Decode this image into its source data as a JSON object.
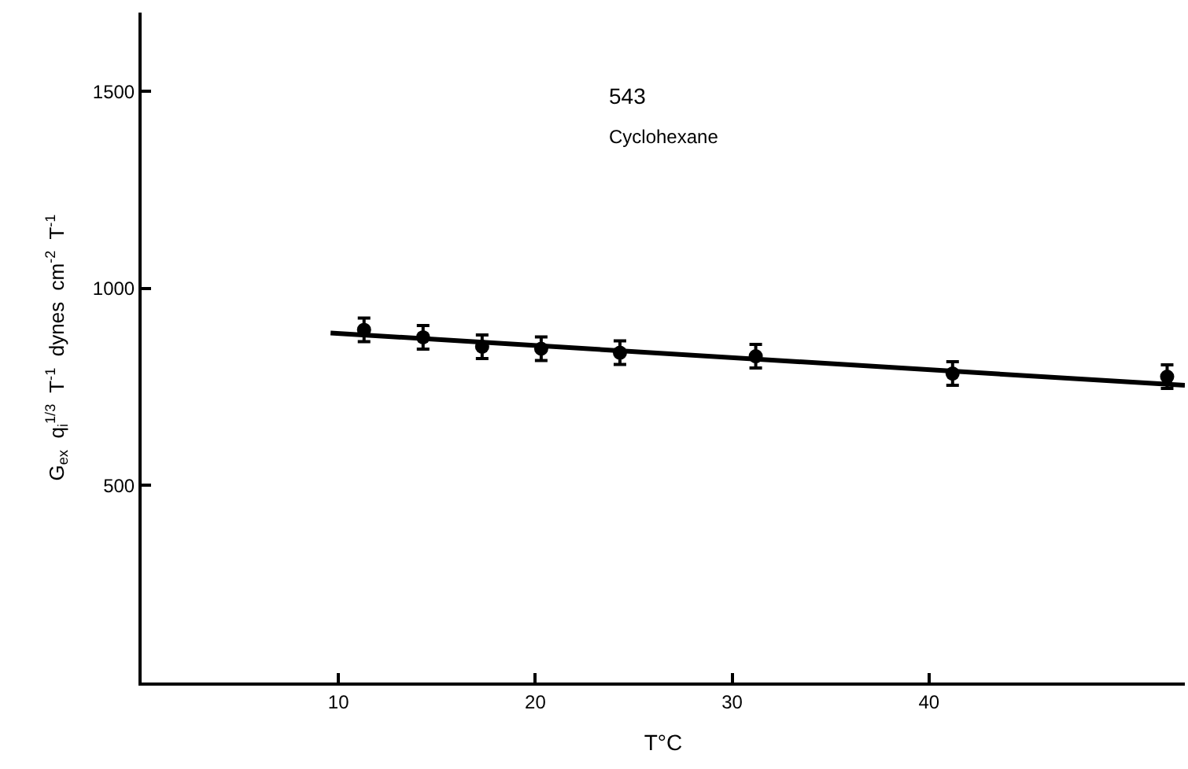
{
  "chart_data": {
    "type": "scatter",
    "xlabel": "T°C",
    "ylabel": "G$_{ex}$  q$_{i}$$^{1/3}$  T$^{-1}$  dynes  cm$^{-2}$  T$^{-1}$",
    "annotations": [
      "543",
      "Cyclohexane"
    ],
    "series": [
      {
        "color": "#000000",
        "marker": "circle",
        "x": [
          11.3,
          14.3,
          17.3,
          20.3,
          24.3,
          31.2,
          41.2,
          52.1
        ],
        "values": [
          895,
          876,
          852,
          847,
          837,
          828,
          784,
          776
        ],
        "errors": [
          30,
          30,
          30,
          30,
          30,
          30,
          30,
          30
        ]
      },
      {
        "type": "line",
        "color": "#000000",
        "marker": "none",
        "line_style": "solid",
        "x": [
          9.6,
          53
        ],
        "values": [
          887,
          754
        ]
      }
    ],
    "xlim": [
      0,
      53
    ],
    "xticks": [
      10,
      20,
      30,
      40
    ],
    "ylim": [
      0,
      1700
    ],
    "yticks": [
      500,
      1000,
      1500
    ]
  }
}
